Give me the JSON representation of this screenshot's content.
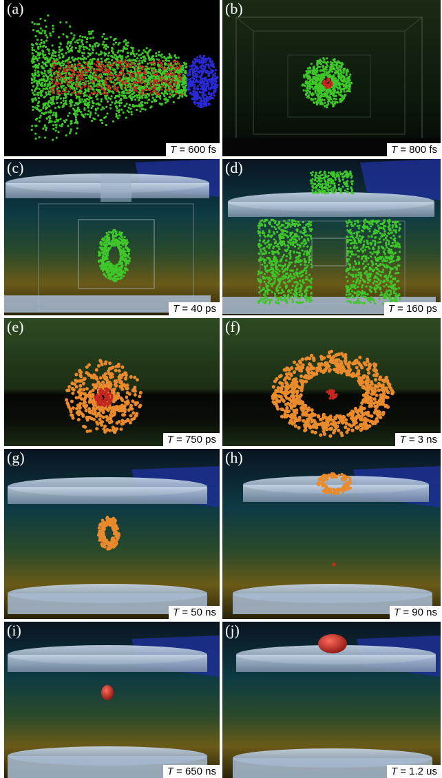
{
  "panels": [
    {
      "label": "(a)",
      "tvar": "T",
      "time": " = 600 fs"
    },
    {
      "label": "(b)",
      "tvar": "T",
      "time": " = 800 fs"
    },
    {
      "label": "(c)",
      "tvar": "T",
      "time": " = 40 ps"
    },
    {
      "label": "(d)",
      "tvar": "T",
      "time": " = 160 ps"
    },
    {
      "label": "(e)",
      "tvar": "T",
      "time": " = 750 ps"
    },
    {
      "label": "(f)",
      "tvar": "T",
      "time": " = 3 ns"
    },
    {
      "label": "(g)",
      "tvar": "T",
      "time": " = 50 ns"
    },
    {
      "label": "(h)",
      "tvar": "T",
      "time": " = 90 ns"
    },
    {
      "label": "(i)",
      "tvar": "T",
      "time": " = 650 ns"
    },
    {
      "label": "(j)",
      "tvar": "T",
      "time": " = 1.2 us"
    }
  ],
  "colors": {
    "electron": "#3fc62a",
    "ion": "#c42620",
    "target": "#2a2ad4",
    "particle_orange": "#e98a2c",
    "background": "#000000"
  }
}
